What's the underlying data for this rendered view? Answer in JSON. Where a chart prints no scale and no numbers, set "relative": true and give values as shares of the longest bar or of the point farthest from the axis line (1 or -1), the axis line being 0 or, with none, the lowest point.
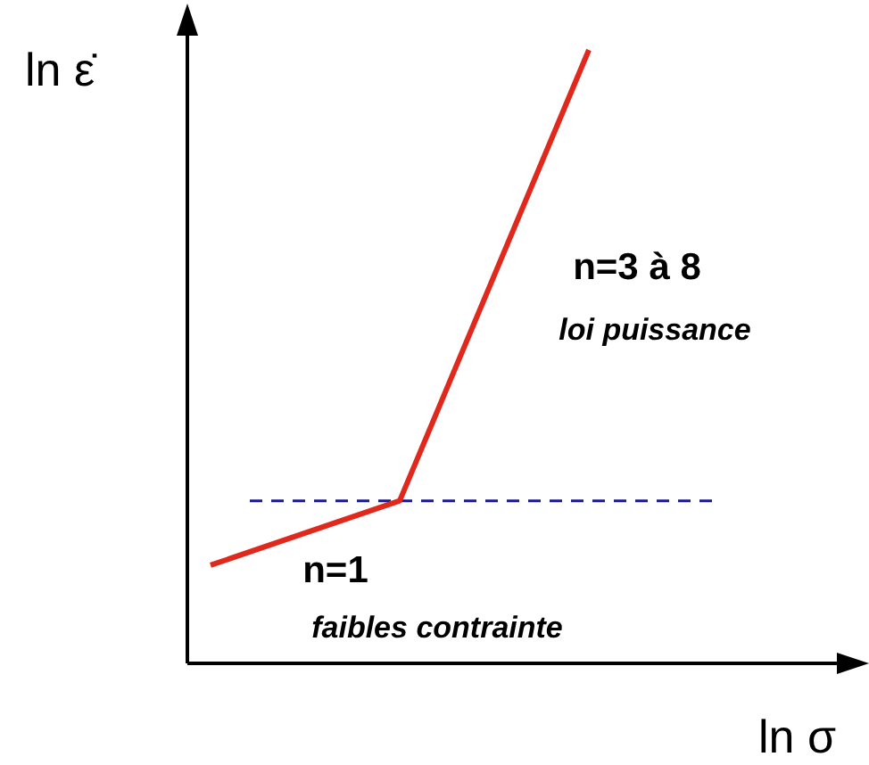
{
  "chart_data": {
    "type": "line",
    "relative": true,
    "xlabel": "ln σ",
    "ylabel": "ln ε̇",
    "categories": [
      null,
      null,
      null
    ],
    "series": [
      {
        "color": "#e0281c",
        "values": [
          0.16,
          0.265,
          1
        ]
      }
    ],
    "ref_lines": [
      {
        "axis": "y",
        "value": 0.265,
        "color": "#1a1a8c",
        "line_style": "dashed"
      }
    ],
    "annotations": [
      "n=3 à 8",
      "loi puissance",
      "n=1",
      "faibles contrainte"
    ]
  }
}
